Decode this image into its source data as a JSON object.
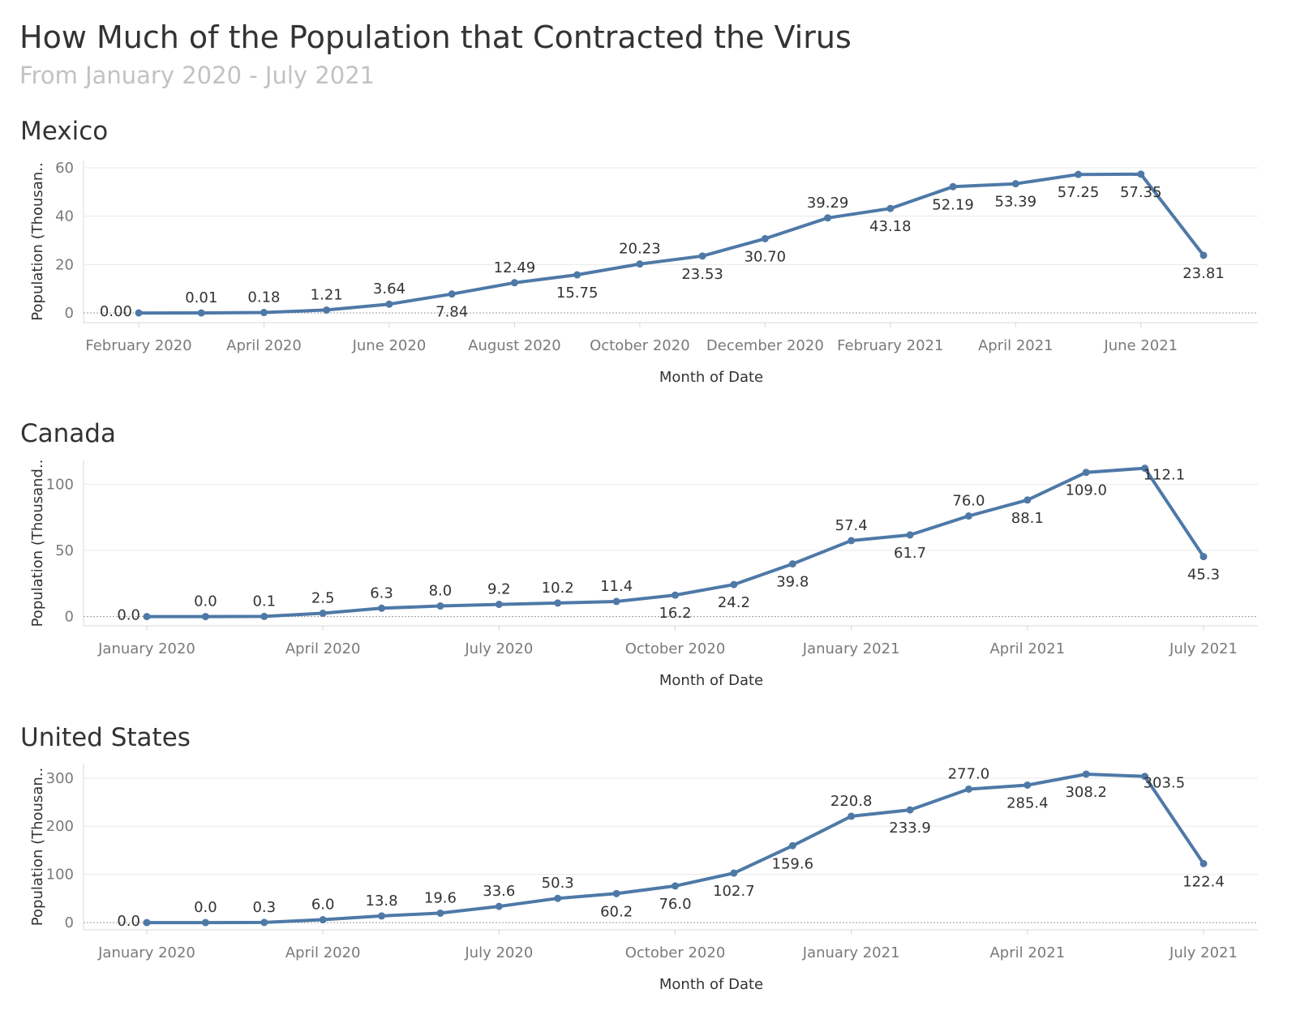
{
  "title": "How Much of the Population that Contracted the Virus",
  "subtitle": "From January 2020 - July 2021",
  "colors": {
    "line": "#4e79a7",
    "grid": "#e9e9e9",
    "zero": "#9a9a9a",
    "axis": "#d8d8d8"
  },
  "chart_data": [
    {
      "type": "line",
      "title": "Mexico",
      "xlabel": "Month of Date",
      "ylabel": "Population (Thousan..",
      "ylim": [
        -4,
        63
      ],
      "yticks": [
        0,
        20,
        40,
        60
      ],
      "x": [
        "2020-02",
        "2020-03",
        "2020-04",
        "2020-05",
        "2020-06",
        "2020-07",
        "2020-08",
        "2020-09",
        "2020-10",
        "2020-11",
        "2020-12",
        "2021-01",
        "2021-02",
        "2021-03",
        "2021-04",
        "2021-05",
        "2021-06",
        "2021-07"
      ],
      "xticks": [
        "February 2020",
        "April 2020",
        "June 2020",
        "August 2020",
        "October 2020",
        "December 2020",
        "February 2021",
        "April 2021",
        "June 2021"
      ],
      "xtick_index": [
        0,
        2,
        4,
        6,
        8,
        10,
        12,
        14,
        16
      ],
      "series": [
        {
          "values": [
            0.0,
            0.01,
            0.18,
            1.21,
            3.64,
            7.84,
            12.49,
            15.75,
            20.23,
            23.53,
            30.7,
            39.29,
            43.18,
            52.19,
            53.39,
            57.25,
            57.35,
            23.81
          ],
          "labels": [
            "0.00",
            "0.01",
            "0.18",
            "1.21",
            "3.64",
            "7.84",
            "12.49",
            "15.75",
            "20.23",
            "23.53",
            "30.70",
            "39.29",
            "43.18",
            "52.19",
            "53.39",
            "57.25",
            "57.35",
            "23.81"
          ]
        }
      ]
    },
    {
      "type": "line",
      "title": "Canada",
      "xlabel": "Month of Date",
      "ylabel": "Population (Thousand..",
      "ylim": [
        -7,
        118
      ],
      "yticks": [
        0,
        50,
        100
      ],
      "x": [
        "2020-01",
        "2020-02",
        "2020-03",
        "2020-04",
        "2020-05",
        "2020-06",
        "2020-07",
        "2020-08",
        "2020-09",
        "2020-10",
        "2020-11",
        "2020-12",
        "2021-01",
        "2021-02",
        "2021-03",
        "2021-04",
        "2021-05",
        "2021-06",
        "2021-07"
      ],
      "xticks": [
        "January 2020",
        "April 2020",
        "July 2020",
        "October 2020",
        "January 2021",
        "April 2021",
        "July 2021"
      ],
      "xtick_index": [
        0,
        3,
        6,
        9,
        12,
        15,
        18
      ],
      "series": [
        {
          "values": [
            0.0,
            0.0,
            0.1,
            2.5,
            6.3,
            8.0,
            9.2,
            10.2,
            11.4,
            16.2,
            24.2,
            39.8,
            57.4,
            61.7,
            76.0,
            88.1,
            109.0,
            112.1,
            45.3
          ],
          "labels": [
            "0.0",
            "0.0",
            "0.1",
            "2.5",
            "6.3",
            "8.0",
            "9.2",
            "10.2",
            "11.4",
            "16.2",
            "24.2",
            "39.8",
            "57.4",
            "61.7",
            "76.0",
            "88.1",
            "109.0",
            "112.1",
            "45.3"
          ]
        }
      ]
    },
    {
      "type": "line",
      "title": "United States",
      "xlabel": "Month of Date",
      "ylabel": "Population (Thousan..",
      "ylim": [
        -15,
        330
      ],
      "yticks": [
        0,
        100,
        200,
        300
      ],
      "x": [
        "2020-01",
        "2020-02",
        "2020-03",
        "2020-04",
        "2020-05",
        "2020-06",
        "2020-07",
        "2020-08",
        "2020-09",
        "2020-10",
        "2020-11",
        "2020-12",
        "2021-01",
        "2021-02",
        "2021-03",
        "2021-04",
        "2021-05",
        "2021-06",
        "2021-07"
      ],
      "xticks": [
        "January 2020",
        "April 2020",
        "July 2020",
        "October 2020",
        "January 2021",
        "April 2021",
        "July 2021"
      ],
      "xtick_index": [
        0,
        3,
        6,
        9,
        12,
        15,
        18
      ],
      "series": [
        {
          "values": [
            0.0,
            0.0,
            0.3,
            6.0,
            13.8,
            19.6,
            33.6,
            50.3,
            60.2,
            76.0,
            102.7,
            159.6,
            220.8,
            233.9,
            277.0,
            285.4,
            308.2,
            303.5,
            122.4
          ],
          "labels": [
            "0.0",
            "0.0",
            "0.3",
            "6.0",
            "13.8",
            "19.6",
            "33.6",
            "50.3",
            "60.2",
            "76.0",
            "102.7",
            "159.6",
            "220.8",
            "233.9",
            "277.0",
            "285.4",
            "308.2",
            "303.5",
            "122.4"
          ]
        }
      ]
    }
  ]
}
